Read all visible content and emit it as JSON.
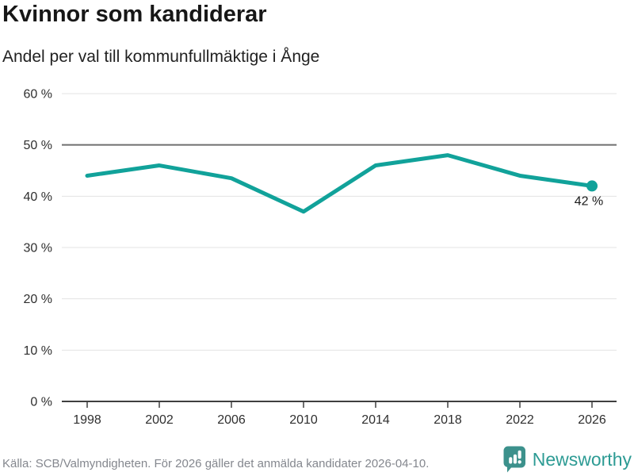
{
  "chart_data": {
    "type": "line",
    "title": "Kvinnor som kandiderar",
    "subtitle": "Andel per val till kommunfullmäktige i Ånge",
    "x": [
      1998,
      2002,
      2006,
      2010,
      2014,
      2018,
      2022,
      2026
    ],
    "x_tick_labels": [
      "1998",
      "2002",
      "2006",
      "2010",
      "2014",
      "2018",
      "2022",
      "2026"
    ],
    "series": [
      {
        "values": [
          44,
          46,
          43.5,
          37,
          46,
          48,
          44,
          42
        ]
      }
    ],
    "ylim": [
      0,
      60
    ],
    "y_tick_step": 10,
    "y_tick_labels": [
      "0 %",
      "10 %",
      "20 %",
      "30 %",
      "40 %",
      "50 %",
      "60 %"
    ],
    "grid": "horizontal",
    "reference_line_value": 50,
    "end_label": "42 %",
    "legend": "none",
    "colors": {
      "line": "#11a29a",
      "grid": "#e3e3e3",
      "reference_line": "#6f6f6f",
      "axis": "#3f3f3f",
      "tick_text": "#2f2f2f",
      "end_label_text": "#1a1a1a"
    }
  },
  "footer": {
    "source": "Källa: SCB/Valmyndigheten. För 2026 gäller det anmälda kandidater 2026-04-10.",
    "brand": "Newsworthy",
    "brand_color": "#2d9b94",
    "icon_color": "#3c918c"
  }
}
